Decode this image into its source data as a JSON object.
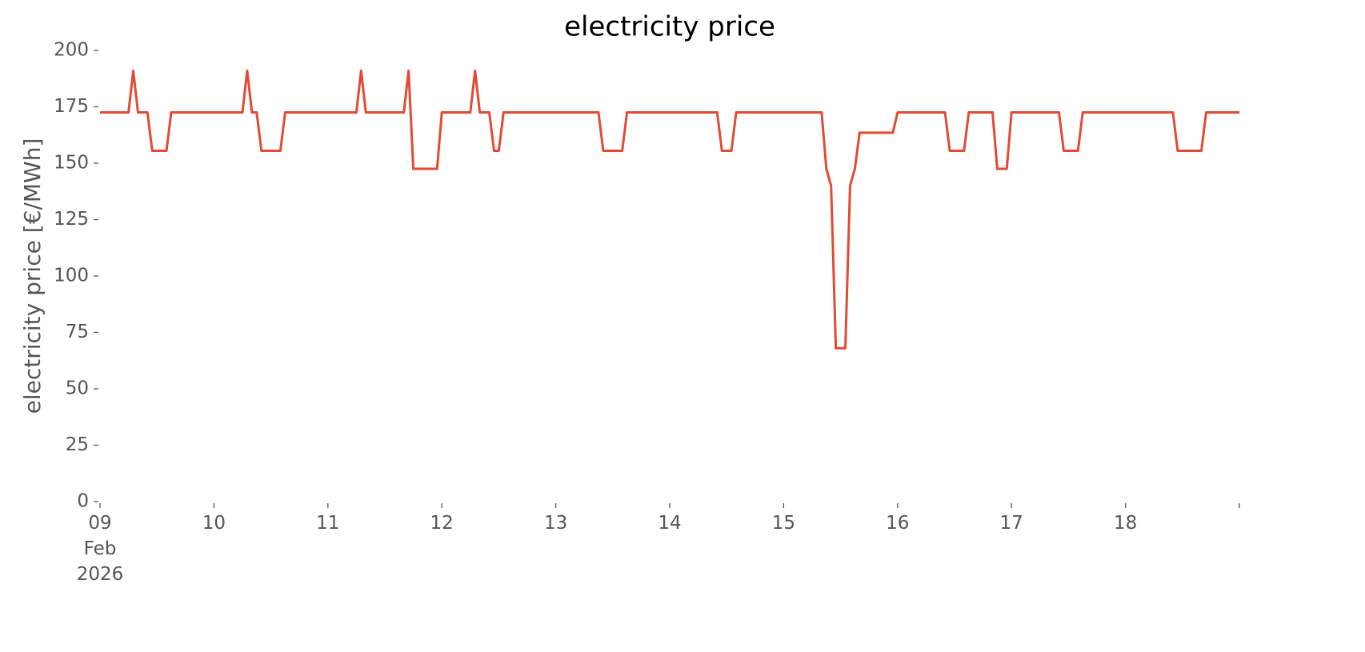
{
  "chart_data": {
    "type": "line",
    "title": "electricity price",
    "y_label": "electricity price [€/MWh]",
    "xlim": [
      "2026-02-09T00:00",
      "2026-02-19T00:00"
    ],
    "xticks": [
      {
        "value": "2026-02-09T00:00",
        "label": "09\nFeb\n2026"
      },
      {
        "value": "2026-02-10T00:00",
        "label": "10"
      },
      {
        "value": "2026-02-11T00:00",
        "label": "11"
      },
      {
        "value": "2026-02-12T00:00",
        "label": "12"
      },
      {
        "value": "2026-02-13T00:00",
        "label": "13"
      },
      {
        "value": "2026-02-14T00:00",
        "label": "14"
      },
      {
        "value": "2026-02-15T00:00",
        "label": "15"
      },
      {
        "value": "2026-02-16T00:00",
        "label": "16"
      },
      {
        "value": "2026-02-17T00:00",
        "label": "17"
      },
      {
        "value": "2026-02-18T00:00",
        "label": "18"
      },
      {
        "value": "2026-02-19T00:00",
        "label": null
      }
    ],
    "ylim": [
      0,
      200
    ],
    "yticks": [
      0,
      25,
      50,
      75,
      100,
      125,
      150,
      175,
      200
    ],
    "grid": false,
    "x": [
      "2026-02-09T00:00",
      "2026-02-09T06:00",
      "2026-02-09T07:00",
      "2026-02-09T08:00",
      "2026-02-09T10:00",
      "2026-02-09T11:00",
      "2026-02-09T14:00",
      "2026-02-09T15:00",
      "2026-02-10T06:00",
      "2026-02-10T07:00",
      "2026-02-10T08:00",
      "2026-02-10T09:00",
      "2026-02-10T10:00",
      "2026-02-10T14:00",
      "2026-02-10T15:00",
      "2026-02-11T06:00",
      "2026-02-11T07:00",
      "2026-02-11T08:00",
      "2026-02-11T16:00",
      "2026-02-11T17:00",
      "2026-02-11T18:00",
      "2026-02-11T23:00",
      "2026-02-12T00:00",
      "2026-02-12T06:00",
      "2026-02-12T07:00",
      "2026-02-12T08:00",
      "2026-02-12T10:00",
      "2026-02-12T11:00",
      "2026-02-12T12:00",
      "2026-02-12T13:00",
      "2026-02-13T09:00",
      "2026-02-13T10:00",
      "2026-02-13T14:00",
      "2026-02-13T15:00",
      "2026-02-14T10:00",
      "2026-02-14T11:00",
      "2026-02-14T13:00",
      "2026-02-14T14:00",
      "2026-02-15T08:00",
      "2026-02-15T09:00",
      "2026-02-15T10:00",
      "2026-02-15T11:00",
      "2026-02-15T13:00",
      "2026-02-15T14:00",
      "2026-02-15T15:00",
      "2026-02-15T16:00",
      "2026-02-15T23:00",
      "2026-02-16T00:00",
      "2026-02-16T10:00",
      "2026-02-16T11:00",
      "2026-02-16T14:00",
      "2026-02-16T15:00",
      "2026-02-16T20:00",
      "2026-02-16T21:00",
      "2026-02-16T23:00",
      "2026-02-17T00:00",
      "2026-02-17T10:00",
      "2026-02-17T11:00",
      "2026-02-17T14:00",
      "2026-02-17T15:00",
      "2026-02-18T10:00",
      "2026-02-18T11:00",
      "2026-02-18T16:00",
      "2026-02-18T17:00",
      "2026-02-19T00:00"
    ],
    "series": [
      {
        "name": "electricity price",
        "color": "#e24a33",
        "values": [
          172.5,
          172.5,
          191,
          172.5,
          172.5,
          155.5,
          155.5,
          172.5,
          172.5,
          191,
          172.5,
          172.5,
          155.5,
          155.5,
          172.5,
          172.5,
          191,
          172.5,
          172.5,
          191,
          147.5,
          147.5,
          172.5,
          172.5,
          191,
          172.5,
          172.5,
          155.5,
          155.5,
          172.5,
          172.5,
          155.5,
          155.5,
          172.5,
          172.5,
          155.5,
          155.5,
          172.5,
          172.5,
          147.5,
          140,
          68,
          68,
          140,
          147.5,
          163.5,
          163.5,
          172.5,
          172.5,
          155.5,
          155.5,
          172.5,
          172.5,
          147.5,
          147.5,
          172.5,
          172.5,
          155.5,
          155.5,
          172.5,
          172.5,
          155.5,
          155.5,
          172.5,
          172.5
        ]
      }
    ]
  }
}
